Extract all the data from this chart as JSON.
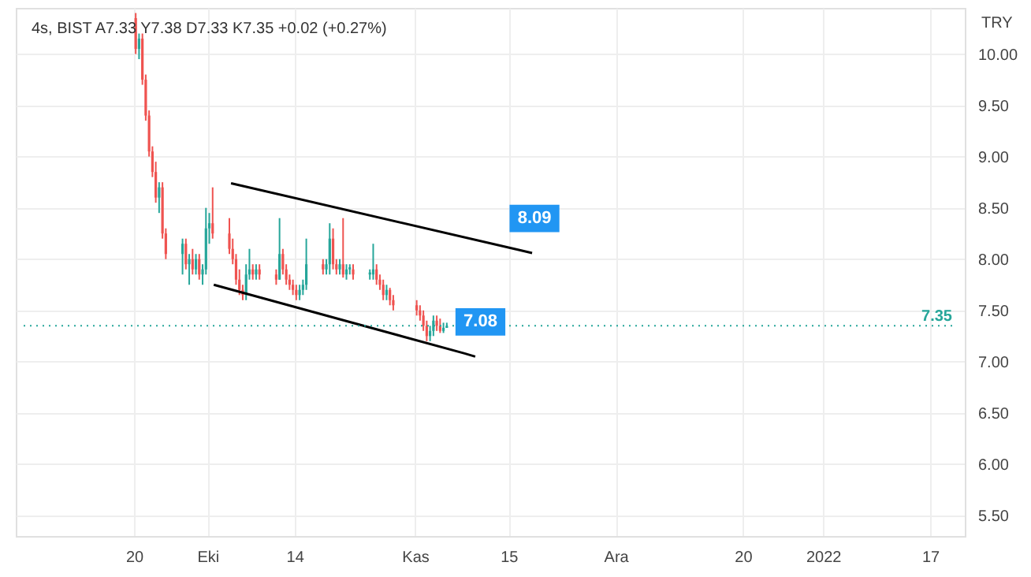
{
  "chart_data": {
    "type": "candlestick",
    "title": "4s, BIST  A7.33  Y7.38  D7.33  K7.35  +0.02 (+0.27%)",
    "ylabel": "TRY",
    "series": [
      {
        "x": [
          "2021-09-20T06:00",
          "2021-09-20T18:00",
          "2021-09-21T06:00",
          "2021-09-21T18:00",
          "2021-09-22T06:00",
          "2021-09-22T18:00",
          "2021-09-23T06:00",
          "2021-09-23T18:00",
          "2021-09-24T06:00",
          "2021-09-24T18:00",
          "2021-09-27T06:00",
          "2021-09-27T18:00",
          "2021-09-28T06:00",
          "2021-09-28T18:00",
          "2021-09-29T06:00",
          "2021-09-29T18:00",
          "2021-09-30T06:00",
          "2021-09-30T18:00",
          "2021-10-01T06:00",
          "2021-10-01T18:00",
          "2021-10-04T06:00",
          "2021-10-04T18:00",
          "2021-10-05T06:00",
          "2021-10-05T18:00",
          "2021-10-06T06:00",
          "2021-10-06T18:00",
          "2021-10-07T06:00",
          "2021-10-07T18:00",
          "2021-10-08T06:00",
          "2021-10-08T18:00",
          "2021-10-11T06:00",
          "2021-10-11T18:00",
          "2021-10-12T06:00",
          "2021-10-12T18:00",
          "2021-10-13T06:00",
          "2021-10-13T18:00",
          "2021-10-14T06:00",
          "2021-10-14T18:00",
          "2021-10-15T06:00",
          "2021-10-15T18:00",
          "2021-10-18T06:00",
          "2021-10-18T18:00",
          "2021-10-19T06:00",
          "2021-10-19T18:00",
          "2021-10-20T06:00",
          "2021-10-20T18:00",
          "2021-10-21T06:00",
          "2021-10-21T18:00",
          "2021-10-22T06:00",
          "2021-10-22T18:00",
          "2021-10-25T06:00",
          "2021-10-25T18:00",
          "2021-10-26T06:00",
          "2021-10-26T18:00",
          "2021-10-27T06:00",
          "2021-10-27T18:00",
          "2021-10-28T06:00",
          "2021-10-28T18:00",
          "2021-11-01T06:00",
          "2021-11-01T18:00",
          "2021-11-02T06:00",
          "2021-11-02T18:00",
          "2021-11-03T06:00",
          "2021-11-03T18:00",
          "2021-11-04T06:00",
          "2021-11-04T18:00",
          "2021-11-05T06:00",
          "2021-11-05T18:00"
        ],
        "ohlc": [
          [
            10.35,
            10.4,
            10.0,
            10.05
          ],
          [
            10.05,
            10.2,
            9.95,
            10.15
          ],
          [
            10.15,
            10.2,
            9.7,
            9.75
          ],
          [
            9.75,
            9.8,
            9.35,
            9.4
          ],
          [
            9.4,
            9.45,
            9.0,
            9.05
          ],
          [
            9.05,
            9.1,
            8.8,
            8.85
          ],
          [
            8.85,
            8.95,
            8.55,
            8.6
          ],
          [
            8.6,
            8.75,
            8.45,
            8.7
          ],
          [
            8.7,
            8.75,
            8.2,
            8.25
          ],
          [
            8.25,
            8.3,
            8.0,
            8.05
          ],
          [
            8.05,
            8.2,
            7.85,
            8.15
          ],
          [
            8.15,
            8.2,
            7.9,
            7.95
          ],
          [
            7.95,
            8.05,
            7.75,
            8.0
          ],
          [
            8.0,
            8.1,
            7.85,
            7.9
          ],
          [
            7.9,
            8.05,
            7.85,
            8.0
          ],
          [
            8.0,
            8.05,
            7.8,
            7.85
          ],
          [
            7.85,
            7.95,
            7.75,
            7.9
          ],
          [
            7.9,
            8.5,
            7.85,
            8.3
          ],
          [
            8.3,
            8.45,
            8.15,
            8.35
          ],
          [
            8.35,
            8.7,
            8.2,
            8.25
          ],
          [
            8.25,
            8.4,
            8.05,
            8.1
          ],
          [
            8.1,
            8.2,
            7.95,
            8.0
          ],
          [
            8.0,
            8.05,
            7.75,
            7.8
          ],
          [
            7.8,
            7.9,
            7.65,
            7.7
          ],
          [
            7.7,
            7.75,
            7.6,
            7.65
          ],
          [
            7.65,
            7.95,
            7.6,
            7.85
          ],
          [
            7.85,
            8.1,
            7.8,
            7.9
          ],
          [
            7.9,
            7.95,
            7.8,
            7.85
          ],
          [
            7.85,
            7.95,
            7.8,
            7.9
          ],
          [
            7.9,
            7.95,
            7.8,
            7.85
          ],
          [
            7.85,
            7.9,
            7.75,
            7.8
          ],
          [
            7.8,
            8.4,
            7.8,
            8.05
          ],
          [
            8.05,
            8.1,
            7.85,
            7.9
          ],
          [
            7.9,
            7.95,
            7.75,
            7.8
          ],
          [
            7.8,
            7.85,
            7.7,
            7.75
          ],
          [
            7.75,
            7.8,
            7.65,
            7.7
          ],
          [
            7.7,
            7.75,
            7.6,
            7.65
          ],
          [
            7.65,
            7.75,
            7.6,
            7.7
          ],
          [
            7.7,
            7.8,
            7.65,
            7.75
          ],
          [
            7.75,
            8.2,
            7.7,
            7.95
          ],
          [
            7.95,
            8.0,
            7.85,
            7.9
          ],
          [
            7.9,
            8.0,
            7.85,
            7.95
          ],
          [
            7.95,
            8.35,
            7.85,
            8.2
          ],
          [
            8.2,
            8.3,
            7.9,
            7.95
          ],
          [
            7.95,
            8.0,
            7.85,
            7.9
          ],
          [
            7.9,
            8.0,
            7.85,
            7.95
          ],
          [
            7.95,
            8.4,
            7.82,
            7.85
          ],
          [
            7.85,
            7.95,
            7.8,
            7.9
          ],
          [
            7.9,
            7.95,
            7.85,
            7.92
          ],
          [
            7.9,
            7.95,
            7.8,
            7.85
          ],
          [
            7.85,
            7.9,
            7.8,
            7.87
          ],
          [
            7.85,
            8.15,
            7.8,
            7.9
          ],
          [
            7.9,
            7.95,
            7.75,
            7.8
          ],
          [
            7.8,
            7.85,
            7.7,
            7.75
          ],
          [
            7.75,
            7.8,
            7.6,
            7.65
          ],
          [
            7.65,
            7.75,
            7.6,
            7.7
          ],
          [
            7.7,
            7.72,
            7.55,
            7.6
          ],
          [
            7.6,
            7.65,
            7.5,
            7.55
          ],
          [
            7.55,
            7.6,
            7.45,
            7.5
          ],
          [
            7.5,
            7.55,
            7.4,
            7.45
          ],
          [
            7.45,
            7.5,
            7.3,
            7.35
          ],
          [
            7.35,
            7.4,
            7.2,
            7.25
          ],
          [
            7.25,
            7.35,
            7.2,
            7.3
          ],
          [
            7.3,
            7.45,
            7.25,
            7.4
          ],
          [
            7.4,
            7.45,
            7.3,
            7.35
          ],
          [
            7.35,
            7.42,
            7.28,
            7.3
          ],
          [
            7.3,
            7.38,
            7.28,
            7.33
          ],
          [
            7.33,
            7.38,
            7.33,
            7.35
          ]
        ],
        "colors": [
          "#ef5350",
          "#26a69a",
          "#ef5350",
          "#ef5350",
          "#ef5350",
          "#ef5350",
          "#ef5350",
          "#26a69a",
          "#ef5350",
          "#ef5350",
          "#26a69a",
          "#ef5350",
          "#26a69a",
          "#ef5350",
          "#26a69a",
          "#ef5350",
          "#26a69a",
          "#26a69a",
          "#26a69a",
          "#ef5350",
          "#ef5350",
          "#ef5350",
          "#ef5350",
          "#ef5350",
          "#ef5350",
          "#26a69a",
          "#26a69a",
          "#ef5350",
          "#26a69a",
          "#ef5350",
          "#ef5350",
          "#26a69a",
          "#ef5350",
          "#ef5350",
          "#ef5350",
          "#ef5350",
          "#ef5350",
          "#26a69a",
          "#26a69a",
          "#26a69a",
          "#ef5350",
          "#26a69a",
          "#26a69a",
          "#ef5350",
          "#ef5350",
          "#26a69a",
          "#ef5350",
          "#26a69a",
          "#26a69a",
          "#ef5350",
          "#26a69a",
          "#26a69a",
          "#ef5350",
          "#ef5350",
          "#ef5350",
          "#26a69a",
          "#ef5350",
          "#ef5350",
          "#ef5350",
          "#ef5350",
          "#ef5350",
          "#ef5350",
          "#26a69a",
          "#26a69a",
          "#ef5350",
          "#ef5350",
          "#26a69a",
          "#26a69a"
        ]
      },
      {
        "type": "line",
        "x": [
          "2021-10-04T12:00",
          "2021-11-16T12:00",
          "2021-11-18T12:00"
        ],
        "values": [
          8.74,
          8.09,
          8.06
        ],
        "color": "#000000"
      },
      {
        "type": "line",
        "x": [
          "2021-10-01T22:00",
          "2021-11-08T10:00",
          "2021-11-10T00:00"
        ],
        "values": [
          7.75,
          7.08,
          7.05
        ],
        "color": "#000000"
      }
    ],
    "xlim": [
      "2021-09-03T12:00",
      "2022-01-21T00:00"
    ],
    "xticks": [
      {
        "value": "2021-09-20",
        "label": "20"
      },
      {
        "value": "2021-10-01",
        "label": "Eki"
      },
      {
        "value": "2021-10-14",
        "label": "14"
      },
      {
        "value": "2021-11-01",
        "label": "Kas"
      },
      {
        "value": "2021-11-15",
        "label": "15"
      },
      {
        "value": "2021-12-01",
        "label": "Ara"
      },
      {
        "value": "2021-12-20",
        "label": "20"
      },
      {
        "value": "2022-01-01",
        "label": "2022"
      },
      {
        "value": "2022-01-17",
        "label": "17"
      }
    ],
    "ylim": [
      5.3,
      10.45
    ],
    "yticks": [
      {
        "value": 5.5,
        "label": "5.50"
      },
      {
        "value": 6,
        "label": "6.00"
      },
      {
        "value": 6.5,
        "label": "6.50"
      },
      {
        "value": 7,
        "label": "7.00"
      },
      {
        "value": 7.5,
        "label": "7.50"
      },
      {
        "value": 8,
        "label": "8.00"
      },
      {
        "value": 8.5,
        "label": "8.50"
      },
      {
        "value": 9,
        "label": "9.00"
      },
      {
        "value": 9.5,
        "label": "9.50"
      },
      {
        "value": 10,
        "label": "10.00"
      }
    ],
    "grid": true,
    "ref_lines": [
      {
        "axis": "y",
        "value": 7.35,
        "label": "7.35",
        "color": "#26a69a",
        "line_style": "dotted"
      }
    ],
    "annotations": [
      {
        "text": "8.09",
        "x": "2021-11-16T12:00",
        "y": 8.09
      },
      {
        "text": "7.08",
        "x": "2021-11-08T10:00",
        "y": 7.08
      }
    ]
  }
}
